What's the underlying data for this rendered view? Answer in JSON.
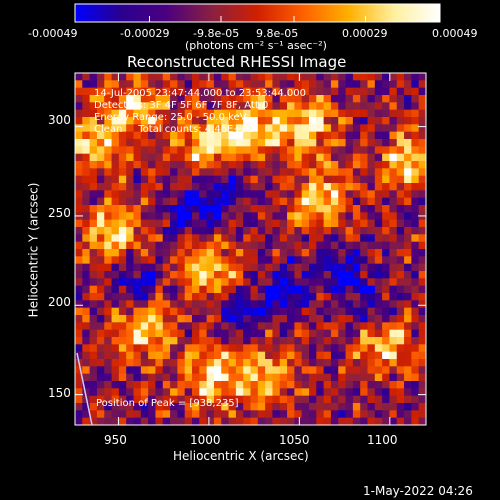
{
  "chart_data": {
    "type": "heatmap",
    "title": "Reconstructed RHESSI Image",
    "xlabel": "Heliocentric X (arcsec)",
    "ylabel": "Heliocentric Y (arcsec)",
    "xlim": [
      926,
      1120
    ],
    "ylim": [
      133,
      330
    ],
    "x_ticks": [
      950,
      1000,
      1050,
      1100
    ],
    "y_ticks": [
      150,
      200,
      250,
      300
    ],
    "colorbar": {
      "ticks": [
        "-0.00049",
        "-0.00029",
        "-9.8e-05",
        "9.8e-05",
        "0.00029",
        "0.00049"
      ],
      "unit_label": "(photons cm⁻² s⁻¹ asec⁻²)",
      "range": [
        -0.00049,
        0.00049
      ],
      "colormap": [
        "#0000ff",
        "#2a0090",
        "#4a0080",
        "#8a2040",
        "#d02000",
        "#ff6000",
        "#ffb000",
        "#fff0a0",
        "#ffffff"
      ]
    },
    "annotations": [
      "14-Jul-2005 23:47:44.000 to 23:53:44.000",
      "Detectors: 3F 4F 5F 6F 7F 8F, Att 0",
      "Energy Range: 25.0 - 50.0 keV",
      "Clean     Total counts: 4.46E+03"
    ],
    "peak_label": "Position of Peak = [938,235]",
    "peak_position": [
      938,
      235
    ],
    "pattern": {
      "bright_regions": [
        [
          935,
          290
        ],
        [
          948,
          240
        ],
        [
          960,
          310
        ],
        [
          1000,
          290
        ],
        [
          1025,
          300
        ],
        [
          1055,
          300
        ],
        [
          1062,
          260
        ],
        [
          1000,
          160
        ],
        [
          1030,
          160
        ],
        [
          1000,
          220
        ],
        [
          1095,
          180
        ],
        [
          1110,
          280
        ],
        [
          965,
          185
        ]
      ],
      "faint_regions": [
        [
          990,
          250
        ],
        [
          1010,
          265
        ],
        [
          1020,
          195
        ],
        [
          1045,
          210
        ],
        [
          1090,
          195
        ],
        [
          1075,
          220
        ],
        [
          960,
          215
        ]
      ]
    }
  },
  "footer": {
    "timestamp": "1-May-2022 04:26"
  }
}
